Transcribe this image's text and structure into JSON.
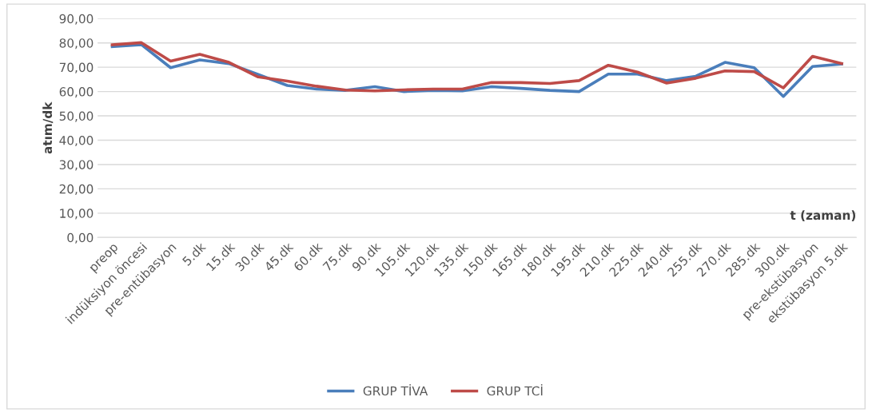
{
  "chart_data": {
    "type": "line",
    "ylabel": "atım/dk",
    "xlabel": "t (zaman)",
    "categories": [
      "preop",
      "indüksiyon öncesi",
      "pre-entübasyon",
      "5.dk",
      "15.dk",
      "30.dk",
      "45.dk",
      "60.dk",
      "75.dk",
      "90.dk",
      "105.dk",
      "120.dk",
      "135.dk",
      "150.dk",
      "165.dk",
      "180.dk",
      "195.dk",
      "210.dk",
      "225.dk",
      "240.dk",
      "255.dk",
      "270.dk",
      "285.dk",
      "300.dk",
      "pre-ekstübasyon",
      "ekstübasyon 5.dk"
    ],
    "series": [
      {
        "name": "GRUP TİVA",
        "color": "#4a7ebb",
        "values": [
          78.5,
          79.3,
          69.8,
          73,
          71.5,
          67,
          62.5,
          61,
          60.5,
          62,
          60,
          60.5,
          60.3,
          62,
          61.3,
          60.5,
          60,
          67.2,
          67.2,
          64.5,
          66.3,
          72,
          69.8,
          58,
          70.3,
          71.3
        ]
      },
      {
        "name": "GRUP TCİ",
        "color": "#be4b48",
        "values": [
          79.2,
          80.1,
          72.5,
          75.3,
          72,
          66,
          64.3,
          62.2,
          60.6,
          60.3,
          60.7,
          61,
          61,
          63.7,
          63.7,
          63.3,
          64.5,
          70.8,
          68,
          63.5,
          65.5,
          68.5,
          68.2,
          61.5,
          74.5,
          71.5
        ]
      }
    ],
    "ylim": [
      0,
      90
    ],
    "yticks": [
      {
        "value": 0,
        "label": "0,00"
      },
      {
        "value": 10,
        "label": "10,00"
      },
      {
        "value": 20,
        "label": "20,00"
      },
      {
        "value": 30,
        "label": "30,00"
      },
      {
        "value": 40,
        "label": "40,00"
      },
      {
        "value": 50,
        "label": "50,00"
      },
      {
        "value": 60,
        "label": "60,00"
      },
      {
        "value": 70,
        "label": "70,00"
      },
      {
        "value": 80,
        "label": "80,00"
      },
      {
        "value": 90,
        "label": "90,00"
      }
    ],
    "grid": "y",
    "legend": "bottom",
    "marker": "none",
    "line_style": "solid"
  }
}
